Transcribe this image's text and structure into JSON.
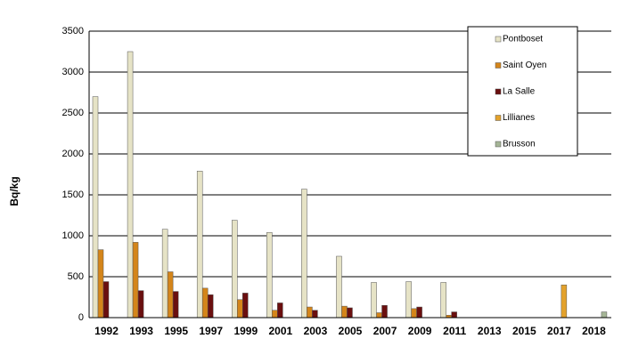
{
  "chart_data": {
    "type": "bar",
    "y_label": "Bq/kg",
    "categories": [
      "1992",
      "1993",
      "1995",
      "1997",
      "1999",
      "2001",
      "2003",
      "2005",
      "2007",
      "2009",
      "2011",
      "2013",
      "2015",
      "2017",
      "2018"
    ],
    "series": [
      {
        "name": "Pontboset",
        "color": "#e6e3c6",
        "values": [
          2700,
          3250,
          1080,
          1790,
          1190,
          1040,
          1570,
          750,
          430,
          440,
          430,
          null,
          null,
          null,
          null
        ]
      },
      {
        "name": "Saint Oyen",
        "color": "#d4851a",
        "values": [
          830,
          920,
          560,
          360,
          220,
          90,
          130,
          140,
          60,
          110,
          30,
          null,
          null,
          null,
          null
        ]
      },
      {
        "name": "La Salle",
        "color": "#6a0f0f",
        "values": [
          440,
          330,
          320,
          280,
          300,
          180,
          90,
          120,
          150,
          130,
          70,
          null,
          null,
          null,
          null
        ]
      },
      {
        "name": "Lillianes",
        "color": "#e3a22c",
        "values": [
          null,
          null,
          null,
          null,
          null,
          null,
          null,
          null,
          null,
          null,
          null,
          null,
          null,
          400,
          null
        ]
      },
      {
        "name": "Brusson",
        "color": "#a5b596",
        "values": [
          null,
          null,
          null,
          null,
          null,
          null,
          null,
          null,
          null,
          null,
          null,
          null,
          null,
          null,
          70
        ]
      }
    ],
    "ylim": [
      0,
      3500
    ],
    "yticks": [
      0,
      500,
      1000,
      1500,
      2000,
      2500,
      3000,
      3500
    ],
    "grid": true,
    "legend": "upper right"
  }
}
